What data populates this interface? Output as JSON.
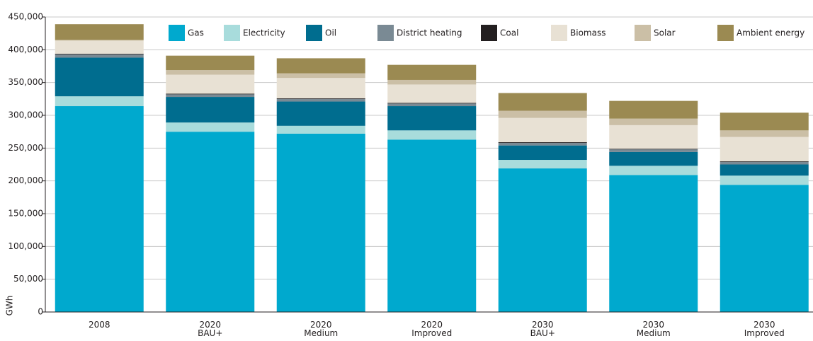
{
  "chart_data": {
    "type": "stacked_bar",
    "y_label": "GWh",
    "categories": [
      "2008",
      "2020\nBAU+",
      "2020\nMedium",
      "2020\nImproved",
      "2030\nBAU+",
      "2030\nMedium",
      "2030\nImproved"
    ],
    "series": [
      {
        "name": "Gas",
        "color": "#00a9ce",
        "values": [
          314000,
          275000,
          272000,
          263000,
          219000,
          209000,
          194000
        ]
      },
      {
        "name": "Electricity",
        "color": "#a8dcdc",
        "values": [
          15000,
          14000,
          12000,
          14000,
          13000,
          14000,
          14000
        ]
      },
      {
        "name": "Oil",
        "color": "#006d8f",
        "values": [
          59000,
          39000,
          37000,
          37000,
          22000,
          21000,
          17000
        ]
      },
      {
        "name": "District heating",
        "color": "#7a8a94",
        "values": [
          5000,
          4000,
          4000,
          4000,
          4000,
          4000,
          4000
        ]
      },
      {
        "name": "Coal",
        "color": "#231f20",
        "values": [
          1000,
          1000,
          1000,
          1000,
          1000,
          1000,
          1000
        ]
      },
      {
        "name": "Biomass",
        "color": "#e8e1d4",
        "values": [
          20000,
          29000,
          31000,
          28000,
          37000,
          36000,
          37000
        ]
      },
      {
        "name": "Solar",
        "color": "#cbbfa6",
        "values": [
          1000,
          7000,
          7000,
          7000,
          11000,
          10000,
          10000
        ]
      },
      {
        "name": "Ambient energy",
        "color": "#9b8a52",
        "values": [
          24000,
          22000,
          23000,
          23000,
          27000,
          27000,
          27000
        ]
      }
    ],
    "ylim": [
      0,
      450000
    ],
    "yticks": [
      0,
      {
        "value": 50000,
        "label": "50,000"
      },
      {
        "value": 100000,
        "label": "100,000"
      },
      {
        "value": 150000,
        "label": "150,000"
      },
      {
        "value": 200000,
        "label": "200,000"
      },
      {
        "value": 250000,
        "label": "250,000"
      },
      {
        "value": 300000,
        "label": "300,000"
      },
      {
        "value": 350000,
        "label": "350,000"
      },
      {
        "value": 400000,
        "label": "400,000"
      },
      {
        "value": 450000,
        "label": "450,000"
      }
    ],
    "grid": true
  }
}
